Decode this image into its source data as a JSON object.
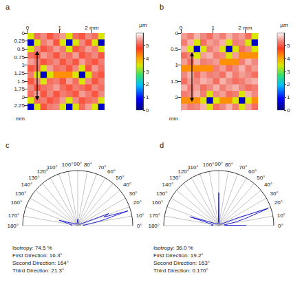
{
  "chart_data": [
    {
      "type": "heatmap",
      "title": "a",
      "x_bins": [
        0,
        0.2,
        0.4,
        0.6,
        0.8,
        1,
        1.2,
        1.4,
        1.6,
        1.8,
        2,
        2.2,
        2.4
      ],
      "y_bins": [
        0,
        0.2,
        0.4,
        0.6,
        0.8,
        1,
        1.2,
        1.4,
        1.6,
        1.8,
        2,
        2.2,
        2.4
      ],
      "cells": [
        [
          3.5,
          5.2,
          5.4,
          5,
          5.3,
          5.5,
          3.5,
          5.2,
          5,
          5.4,
          5.2,
          3.5
        ],
        [
          0.5,
          3.5,
          5.3,
          5.5,
          5,
          3.5,
          0.5,
          3.5,
          5.4,
          5,
          3.5,
          0.5
        ],
        [
          3.5,
          5.4,
          5,
          5.2,
          5.5,
          5.3,
          3.5,
          5,
          5.2,
          5.5,
          5.3,
          3.5
        ],
        [
          5.2,
          5,
          5.5,
          5.3,
          5,
          5.4,
          5.2,
          5.5,
          5,
          5.2,
          5.4,
          5
        ],
        [
          5.5,
          5.3,
          5,
          5.2,
          5.4,
          5,
          5.3,
          5,
          5.5,
          5.2,
          5,
          5.3
        ],
        [
          5,
          5.2,
          3.5,
          5.5,
          5.2,
          5.3,
          5,
          5.4,
          3.5,
          5,
          5.5,
          5.2
        ],
        [
          5.3,
          3.5,
          0.5,
          3.5,
          4.2,
          4.2,
          4.2,
          3.5,
          0.5,
          3.5,
          5.2,
          5
        ],
        [
          5,
          5.4,
          3.5,
          5.2,
          5.3,
          5,
          5.5,
          5.2,
          3.5,
          5.4,
          5,
          5.3
        ],
        [
          5.4,
          5,
          5.2,
          5.3,
          5.5,
          5.2,
          5,
          5.3,
          5.2,
          5,
          5.4,
          5.2
        ],
        [
          5.2,
          5.5,
          5,
          5.4,
          5,
          5.3,
          5.2,
          5,
          5.5,
          5.3,
          5,
          5.4
        ],
        [
          3.5,
          5.2,
          5.3,
          5,
          5.2,
          5.5,
          3.5,
          5.4,
          5,
          5.2,
          5.3,
          3.5
        ],
        [
          0.5,
          3.5,
          5,
          5.3,
          5.4,
          3.5,
          0.5,
          3.5,
          5.2,
          5.5,
          3.5,
          0.5
        ]
      ],
      "xlim": [
        0,
        2.4
      ],
      "xticks": [
        0,
        1,
        {
          "value": 2,
          "label": "2 mm"
        }
      ],
      "ylim": [
        0,
        2.4
      ],
      "yticks": [
        0,
        0.25,
        0.5,
        0.75,
        1,
        1.25,
        1.5,
        1.75,
        2,
        2.25
      ],
      "ylabel": "mm",
      "colorbar": {
        "lim": [
          0,
          6
        ],
        "ticks": [
          0,
          1,
          2,
          3,
          4,
          5
        ],
        "label": "µm"
      }
    },
    {
      "type": "heatmap",
      "title": "b",
      "x_bins": [
        0,
        0.2,
        0.4,
        0.6,
        0.8,
        1,
        1.2,
        1.4,
        1.6,
        1.8,
        2,
        2.2,
        2.4
      ],
      "y_bins": [
        0,
        0.2,
        0.4,
        0.6,
        0.8,
        1,
        1.2,
        1.4,
        1.6,
        1.8,
        2,
        2.2,
        2.4
      ],
      "cells": [
        [
          5.5,
          5.3,
          5.6,
          5.4,
          5.2,
          5.5,
          5.3,
          5.6,
          5.4,
          5.5,
          5.2,
          3.5
        ],
        [
          5.3,
          5.6,
          3.5,
          5.2,
          5.5,
          5.4,
          5.6,
          3.5,
          5.3,
          5.4,
          3.5,
          0.5
        ],
        [
          5.6,
          3.5,
          0.5,
          3.5,
          5.3,
          5.5,
          3.5,
          0.5,
          3.5,
          5.2,
          5.4,
          3.5
        ],
        [
          5.2,
          5.4,
          3.5,
          5.5,
          5.6,
          5.3,
          5.4,
          3.5,
          5.5,
          4.2,
          4.2,
          4.2
        ],
        [
          5.5,
          5.2,
          5.6,
          5.3,
          5.4,
          5.5,
          4.2,
          4.2,
          4.2,
          5.3,
          5.6,
          5.4
        ],
        [
          4.2,
          4.2,
          4.2,
          4.2,
          4.2,
          5.3,
          5.5,
          5.2,
          5.4,
          5.6,
          5.3,
          5.5
        ],
        [
          5.4,
          5.6,
          5.2,
          5.5,
          5.3,
          5.4,
          5.2,
          5.6,
          5.3,
          5.5,
          5.4,
          5.2
        ],
        [
          5.2,
          5.5,
          5.4,
          5.6,
          5.5,
          5.2,
          5.6,
          5.4,
          5.2,
          5.3,
          5.5,
          5.6
        ],
        [
          5.6,
          5.3,
          5.5,
          5.2,
          5.4,
          5.6,
          5.3,
          5.5,
          5.6,
          5.4,
          5.2,
          5.3
        ],
        [
          5.3,
          5.4,
          5.6,
          5.3,
          3.5,
          5.4,
          5.5,
          5.2,
          5.3,
          3.5,
          5.6,
          5.4
        ],
        [
          4.2,
          4.2,
          4.2,
          3.5,
          0.5,
          3.5,
          4.2,
          4.2,
          3.5,
          0.5,
          3.5,
          4.2
        ],
        [
          5.5,
          5.3,
          5.4,
          5.6,
          3.5,
          5.2,
          5.4,
          5.6,
          5.3,
          3.5,
          5.5,
          5.2
        ]
      ],
      "xlim": [
        0,
        2.4
      ],
      "xticks": [
        0,
        1,
        {
          "value": 2,
          "label": "2 mm"
        }
      ],
      "ylim": [
        0,
        2.4
      ],
      "yticks": [
        0,
        0.5,
        1,
        1.5,
        2
      ],
      "ylabel": "mm",
      "colorbar": {
        "lim": [
          0,
          6
        ],
        "ticks": [
          0,
          1,
          2,
          3,
          4,
          5
        ],
        "label": "µm"
      }
    },
    {
      "type": "polar_line",
      "title": "c",
      "color": "#1f1fd0",
      "grid": true,
      "tick_labels": "x",
      "x": [
        0,
        3,
        6,
        9,
        12,
        15,
        16.3,
        18,
        21.3,
        24,
        27,
        30,
        40,
        50,
        60,
        70,
        80,
        85,
        90,
        95,
        100,
        110,
        120,
        130,
        140,
        150,
        155,
        160,
        164,
        167,
        170,
        173,
        176,
        180
      ],
      "values": [
        0.12,
        0.1,
        0.15,
        0.25,
        0.45,
        0.7,
        0.95,
        0.5,
        0.6,
        0.15,
        0.08,
        0.05,
        0.04,
        0.04,
        0.04,
        0.04,
        0.05,
        0.06,
        0.12,
        0.06,
        0.05,
        0.04,
        0.04,
        0.04,
        0.05,
        0.07,
        0.1,
        0.15,
        0.35,
        0.2,
        0.15,
        0.12,
        0.1,
        0.12
      ],
      "xlim": [
        0,
        180
      ],
      "xticks": [
        {
          "value": 0,
          "label": "0°"
        },
        {
          "value": 10,
          "label": "10°"
        },
        {
          "value": 20,
          "label": "20°"
        },
        {
          "value": 30,
          "label": "30°"
        },
        {
          "value": 40,
          "label": "40°"
        },
        {
          "value": 50,
          "label": "50°"
        },
        {
          "value": 60,
          "label": "60°"
        },
        {
          "value": 70,
          "label": "70°"
        },
        {
          "value": 80,
          "label": "80°"
        },
        {
          "value": 90,
          "label": "90°"
        },
        {
          "value": 100,
          "label": "100°"
        },
        {
          "value": 110,
          "label": "110°"
        },
        {
          "value": 120,
          "label": "120°"
        },
        {
          "value": 130,
          "label": "130°"
        },
        {
          "value": 140,
          "label": "140°"
        },
        {
          "value": 150,
          "label": "150°"
        },
        {
          "value": 160,
          "label": "160°"
        },
        {
          "value": 170,
          "label": "170°"
        },
        {
          "value": 180,
          "label": "180°"
        }
      ],
      "ylim": [
        0,
        1
      ],
      "annotations": [
        "Isotropy: 74.5 %",
        "First Direction: 16.3°",
        "Second Direction: 164°",
        "Third Direction: 21.3°"
      ]
    },
    {
      "type": "polar_line",
      "title": "d",
      "color": "#1f1fd0",
      "grid": true,
      "tick_labels": "x",
      "x": [
        0,
        0.17,
        3,
        6,
        9,
        12,
        15,
        19.2,
        22,
        25,
        30,
        40,
        50,
        60,
        70,
        80,
        85,
        88,
        90,
        92,
        95,
        100,
        110,
        120,
        130,
        140,
        150,
        155,
        160,
        163,
        166,
        170,
        175,
        180
      ],
      "values": [
        0.15,
        0.5,
        0.12,
        0.1,
        0.15,
        0.3,
        0.5,
        0.95,
        0.4,
        0.15,
        0.06,
        0.04,
        0.04,
        0.04,
        0.04,
        0.05,
        0.06,
        0.15,
        0.6,
        0.15,
        0.06,
        0.05,
        0.04,
        0.04,
        0.04,
        0.05,
        0.07,
        0.12,
        0.25,
        0.55,
        0.2,
        0.12,
        0.1,
        0.15
      ],
      "xlim": [
        0,
        180
      ],
      "xticks": [
        {
          "value": 0,
          "label": "0°"
        },
        {
          "value": 10,
          "label": "10°"
        },
        {
          "value": 20,
          "label": "20°"
        },
        {
          "value": 30,
          "label": "30°"
        },
        {
          "value": 40,
          "label": "40°"
        },
        {
          "value": 50,
          "label": "50°"
        },
        {
          "value": 60,
          "label": "60°"
        },
        {
          "value": 70,
          "label": "70°"
        },
        {
          "value": 80,
          "label": "80°"
        },
        {
          "value": 90,
          "label": "90°"
        },
        {
          "value": 100,
          "label": "100°"
        },
        {
          "value": 110,
          "label": "110°"
        },
        {
          "value": 120,
          "label": "120°"
        },
        {
          "value": 130,
          "label": "130°"
        },
        {
          "value": 140,
          "label": "140°"
        },
        {
          "value": 150,
          "label": "150°"
        },
        {
          "value": 160,
          "label": "160°"
        },
        {
          "value": 170,
          "label": "170°"
        },
        {
          "value": 180,
          "label": "180°"
        }
      ],
      "ylim": [
        0,
        1
      ],
      "annotations": [
        "Isotropy: 36.0 %",
        "First Direction: 19.2°",
        "Second Direction: 163°",
        "Third Direction: 0.170°"
      ]
    }
  ]
}
